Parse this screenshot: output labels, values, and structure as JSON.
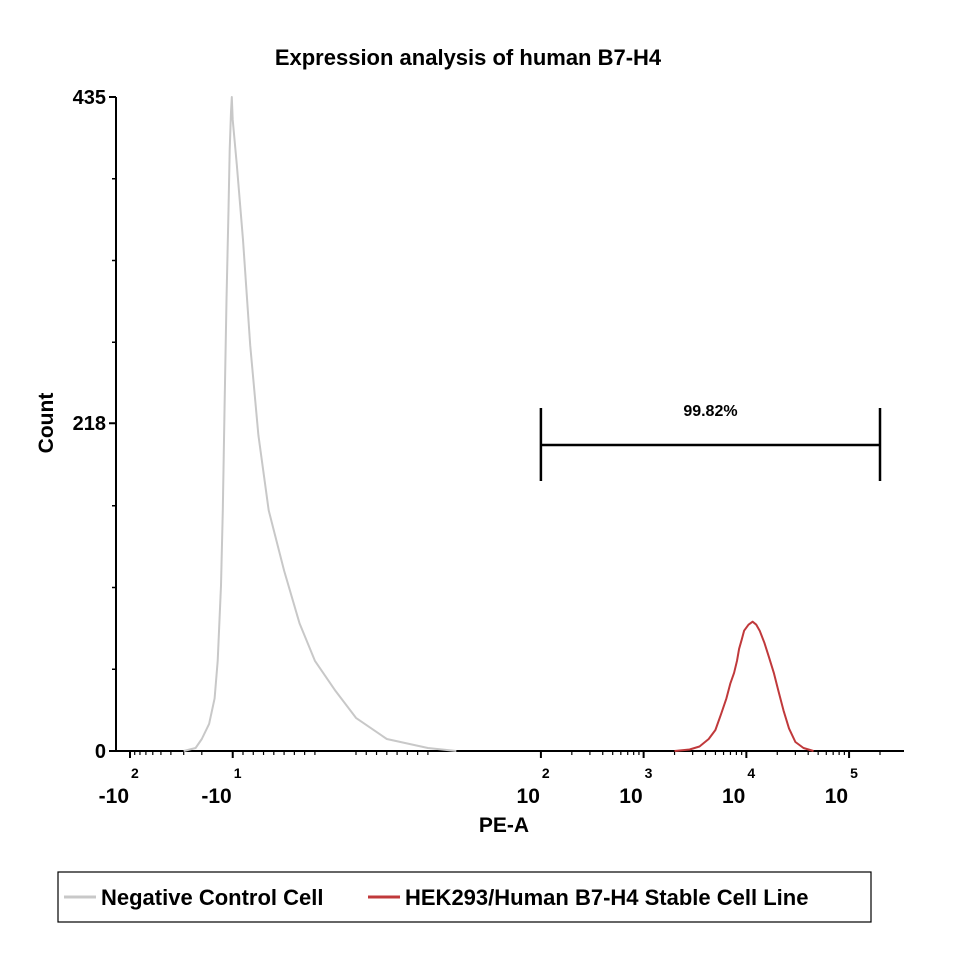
{
  "chart_data": {
    "type": "histogram",
    "title": "Expression analysis of human B7-H4",
    "xlabel": "PE-A",
    "ylabel": "Count",
    "x_scale": "biexponential",
    "ylim": [
      0,
      435
    ],
    "y_ticks": [
      {
        "value": 0,
        "label": "0"
      },
      {
        "value": 218,
        "label": "218"
      },
      {
        "value": 435,
        "label": "435"
      }
    ],
    "x_ticks": [
      {
        "value": -100,
        "base": "-10",
        "exp": "2"
      },
      {
        "value": -10,
        "base": "-10",
        "exp": "1"
      },
      {
        "value": 100,
        "base": "10",
        "exp": "2"
      },
      {
        "value": 1000,
        "base": "10",
        "exp": "3"
      },
      {
        "value": 10000,
        "base": "10",
        "exp": "4"
      },
      {
        "value": 100000,
        "base": "10",
        "exp": "5"
      }
    ],
    "gate": {
      "label": "99.82%",
      "x_start": 100,
      "x_end": 200000
    },
    "series": [
      {
        "name": "Negative Control Cell",
        "color": "#c8c8c8",
        "points": [
          [
            -30,
            0
          ],
          [
            -23,
            2
          ],
          [
            -20,
            8
          ],
          [
            -17,
            18
          ],
          [
            -15,
            35
          ],
          [
            -14,
            60
          ],
          [
            -13,
            110
          ],
          [
            -12.5,
            160
          ],
          [
            -12,
            230
          ],
          [
            -11.5,
            300
          ],
          [
            -11,
            360
          ],
          [
            -10.7,
            400
          ],
          [
            -10.4,
            425
          ],
          [
            -10.2,
            435
          ],
          [
            -10,
            420
          ],
          [
            -9.6,
            390
          ],
          [
            -9,
            340
          ],
          [
            -8.3,
            270
          ],
          [
            -7.5,
            210
          ],
          [
            -6.5,
            160
          ],
          [
            -5,
            120
          ],
          [
            -3.5,
            85
          ],
          [
            -2,
            60
          ],
          [
            0,
            40
          ],
          [
            2,
            22
          ],
          [
            5,
            8
          ],
          [
            9,
            2
          ],
          [
            15,
            0
          ]
        ]
      },
      {
        "name": "HEK293/Human B7-H4 Stable Cell Line",
        "color": "#c0393b",
        "points": [
          [
            2000,
            0
          ],
          [
            2800,
            1
          ],
          [
            3500,
            3
          ],
          [
            4300,
            8
          ],
          [
            5000,
            14
          ],
          [
            5700,
            25
          ],
          [
            6400,
            35
          ],
          [
            7000,
            45
          ],
          [
            7600,
            52
          ],
          [
            8100,
            60
          ],
          [
            8500,
            68
          ],
          [
            9000,
            74
          ],
          [
            9500,
            80
          ],
          [
            10500,
            84
          ],
          [
            11500,
            86
          ],
          [
            12500,
            84
          ],
          [
            13500,
            80
          ],
          [
            15000,
            72
          ],
          [
            16500,
            63
          ],
          [
            18500,
            52
          ],
          [
            20500,
            40
          ],
          [
            23000,
            27
          ],
          [
            26000,
            15
          ],
          [
            30000,
            6
          ],
          [
            36000,
            2
          ],
          [
            45000,
            0
          ]
        ]
      }
    ]
  }
}
